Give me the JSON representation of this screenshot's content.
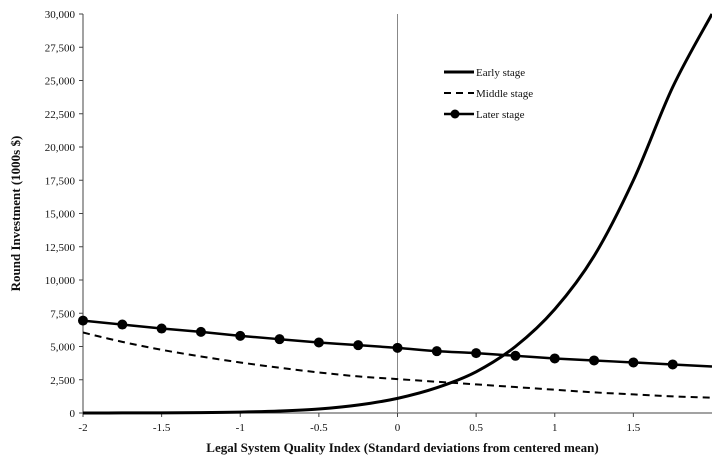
{
  "chart_data": {
    "type": "line",
    "title": "",
    "xlabel": "Legal System Quality Index (Standard deviations from centered mean)",
    "ylabel": "Round Investment (1000s $)",
    "xlim": [
      -2,
      2
    ],
    "ylim": [
      0,
      30000
    ],
    "x_ticks": [
      "-2",
      "-1.5",
      "-1",
      "-0.5",
      "0",
      "0.5",
      "1",
      "1.5"
    ],
    "x_tick_values": [
      -2,
      -1.5,
      -1,
      -0.5,
      0,
      0.5,
      1,
      1.5
    ],
    "y_ticks": [
      "0",
      "2,500",
      "5,000",
      "7,500",
      "10,000",
      "12,500",
      "15,000",
      "17,500",
      "20,000",
      "22,500",
      "25,000",
      "27,500",
      "30,000"
    ],
    "y_tick_values": [
      0,
      2500,
      5000,
      7500,
      10000,
      12500,
      15000,
      17500,
      20000,
      22500,
      25000,
      27500,
      30000
    ],
    "grid": false,
    "reference_line_x": 0,
    "legend_position": "top-right",
    "series": [
      {
        "name": "Early stage",
        "style": "solid-thick",
        "color": "#000000",
        "x": [
          -2,
          -1.75,
          -1.5,
          -1.25,
          -1,
          -0.75,
          -0.5,
          -0.25,
          0,
          0.25,
          0.5,
          0.75,
          1,
          1.25,
          1.5,
          1.75,
          2
        ],
        "y": [
          2,
          5,
          12,
          30,
          70,
          150,
          300,
          600,
          1100,
          1900,
          3100,
          5000,
          7800,
          11800,
          17500,
          24500,
          30000
        ]
      },
      {
        "name": "Middle stage",
        "style": "dashed",
        "color": "#000000",
        "x": [
          -2,
          -1.75,
          -1.5,
          -1.25,
          -1,
          -0.75,
          -0.5,
          -0.25,
          0,
          0.25,
          0.5,
          0.75,
          1,
          1.25,
          1.5,
          1.75,
          2
        ],
        "y": [
          6050,
          5350,
          4750,
          4250,
          3800,
          3400,
          3050,
          2750,
          2550,
          2350,
          2150,
          1950,
          1750,
          1550,
          1400,
          1250,
          1150
        ]
      },
      {
        "name": "Later stage",
        "style": "solid-markers",
        "color": "#000000",
        "x": [
          -2,
          -1.75,
          -1.5,
          -1.25,
          -1,
          -0.75,
          -0.5,
          -0.25,
          0,
          0.25,
          0.5,
          0.75,
          1,
          1.25,
          1.5,
          1.75,
          2
        ],
        "y": [
          6950,
          6650,
          6350,
          6100,
          5800,
          5550,
          5300,
          5100,
          4900,
          4650,
          4500,
          4300,
          4100,
          3950,
          3800,
          3650,
          3500
        ]
      }
    ]
  }
}
